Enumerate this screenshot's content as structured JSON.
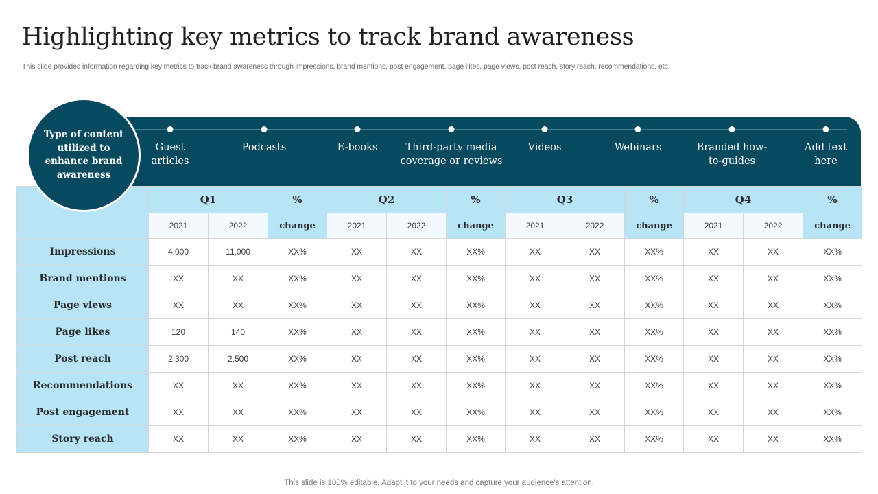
{
  "title": "Highlighting key metrics to track brand awareness",
  "subtitle": "This slide provides information regarding key metrics to track brand awareness through impressions, brand mentions, post engagement, page likes, page views, post reach, story reach, recommendations, etc.",
  "circle_label": "Type of content utilized to enhance brand awareness",
  "content_types": [
    "Guest articles",
    "Podcasts",
    "E-books",
    "Third-party media coverage or reviews",
    "Videos",
    "Webinars",
    "Branded how-to-guides",
    "Add text here"
  ],
  "table": {
    "quarters": [
      {
        "label": "Q1",
        "pct": "%"
      },
      {
        "label": "Q2",
        "pct": "%"
      },
      {
        "label": "Q3",
        "pct": "%"
      },
      {
        "label": "Q4",
        "pct": "%"
      }
    ],
    "subheaders": {
      "year_a": "2021",
      "year_b": "2022",
      "change": "change"
    },
    "rows": [
      {
        "metric": "Impressions",
        "values": [
          "4,000",
          "11,000",
          "XX%",
          "XX",
          "XX",
          "XX%",
          "XX",
          "XX",
          "XX%",
          "XX",
          "XX",
          "XX%"
        ]
      },
      {
        "metric": "Brand mentions",
        "values": [
          "XX",
          "XX",
          "XX%",
          "XX",
          "XX",
          "XX%",
          "XX",
          "XX",
          "XX%",
          "XX",
          "XX",
          "XX%"
        ]
      },
      {
        "metric": "Page views",
        "values": [
          "XX",
          "XX",
          "XX%",
          "XX",
          "XX",
          "XX%",
          "XX",
          "XX",
          "XX%",
          "XX",
          "XX",
          "XX%"
        ]
      },
      {
        "metric": "Page likes",
        "values": [
          "120",
          "140",
          "XX%",
          "XX",
          "XX",
          "XX%",
          "XX",
          "XX",
          "XX%",
          "XX",
          "XX",
          "XX%"
        ]
      },
      {
        "metric": "Post reach",
        "values": [
          "2,300",
          "2,500",
          "XX%",
          "XX",
          "XX",
          "XX%",
          "XX",
          "XX",
          "XX%",
          "XX",
          "XX",
          "XX%"
        ]
      },
      {
        "metric": "Recommendations",
        "values": [
          "XX",
          "XX",
          "XX%",
          "XX",
          "XX",
          "XX%",
          "XX",
          "XX",
          "XX%",
          "XX",
          "XX",
          "XX%"
        ]
      },
      {
        "metric": "Post engagement",
        "values": [
          "XX",
          "XX",
          "XX%",
          "XX",
          "XX",
          "XX%",
          "XX",
          "XX",
          "XX%",
          "XX",
          "XX",
          "XX%"
        ]
      },
      {
        "metric": "Story reach",
        "values": [
          "XX",
          "XX",
          "XX%",
          "XX",
          "XX",
          "XX%",
          "XX",
          "XX",
          "XX%",
          "XX",
          "XX",
          "XX%"
        ]
      }
    ]
  },
  "footer": "This slide is 100% editable. Adapt it to your needs and capture your audience's attention."
}
